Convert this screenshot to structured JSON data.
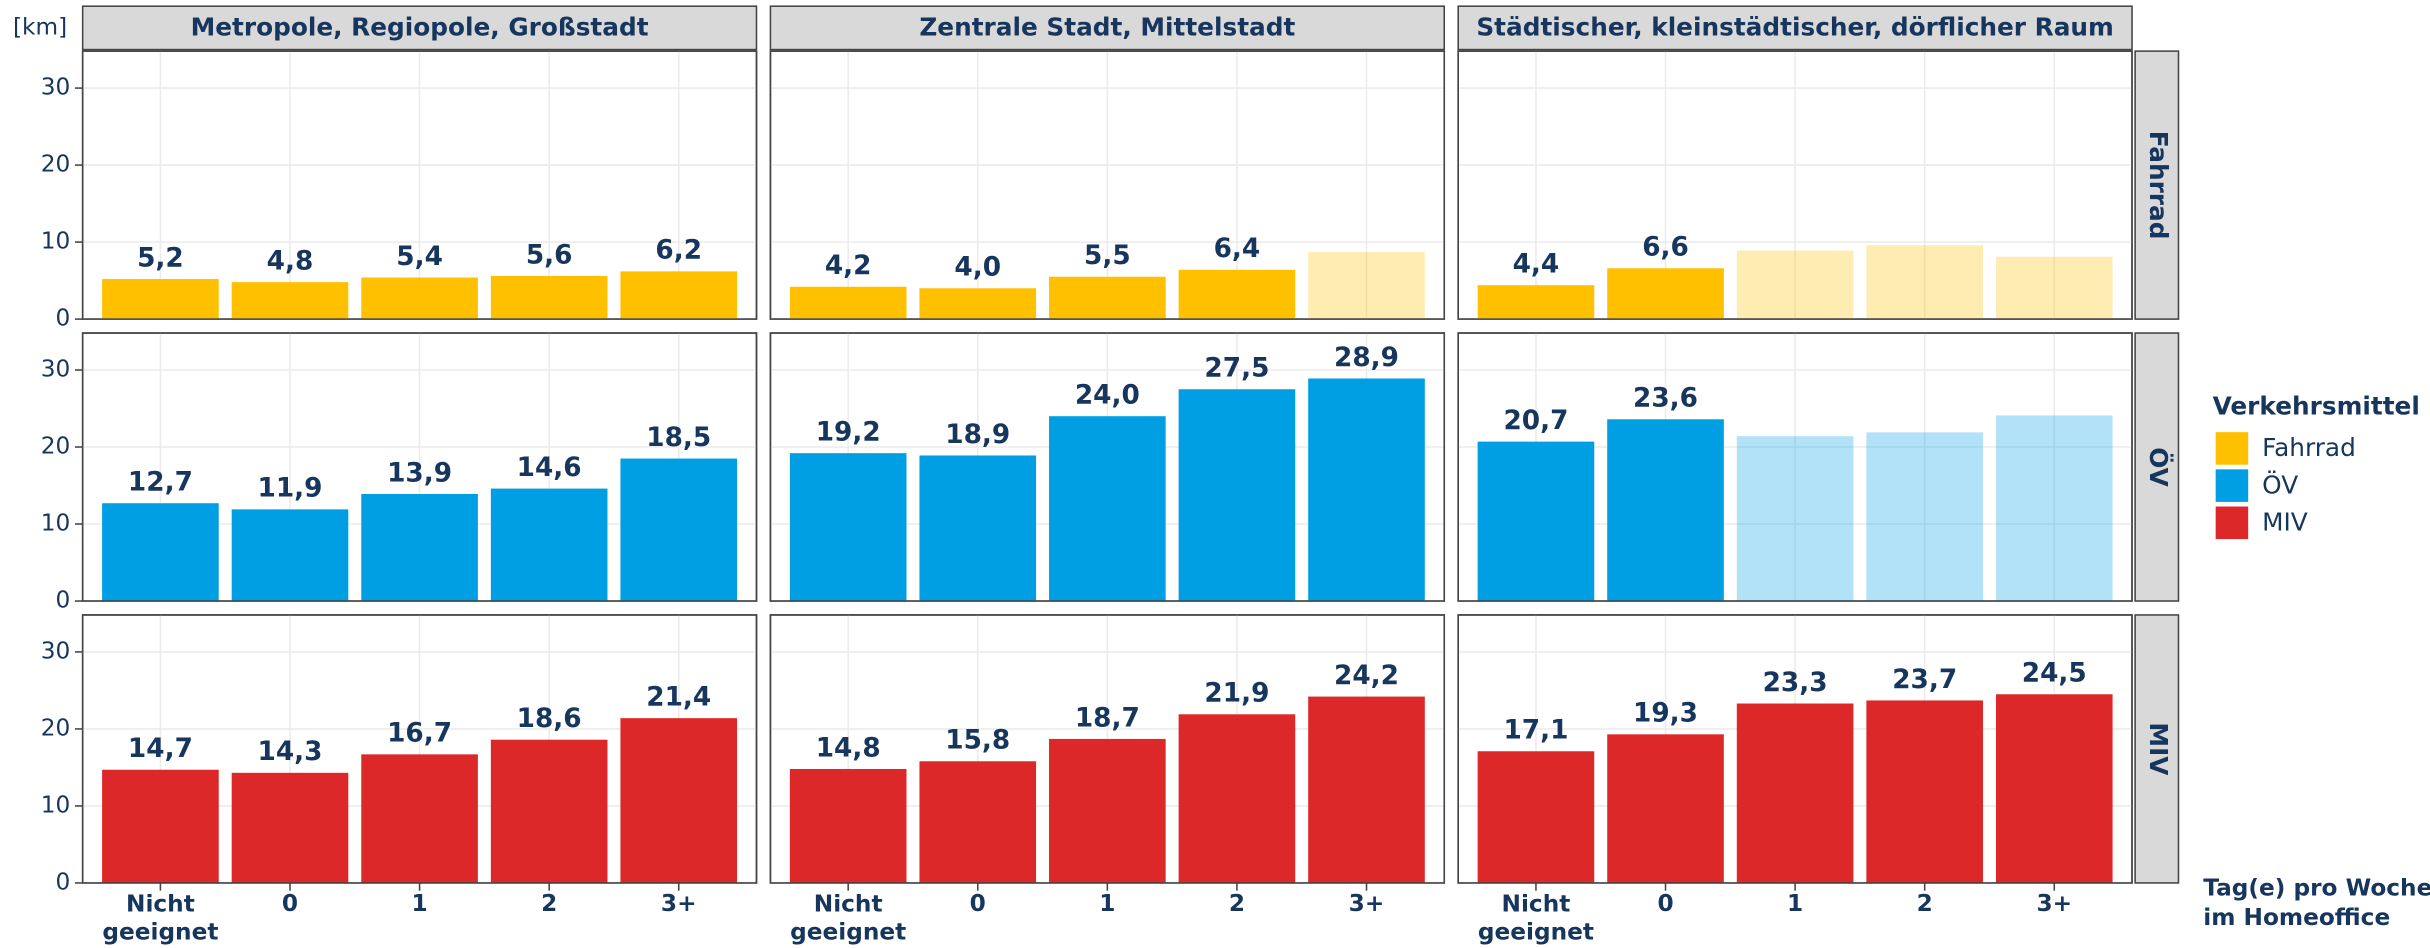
{
  "chart_data": {
    "type": "bar",
    "y_unit": "[km]",
    "columns": [
      "Metropole, Regiopole, Großstadt",
      "Zentrale Stadt, Mittelstadt",
      "Städtischer, kleinstädtischer, dörflicher Raum"
    ],
    "rows": [
      {
        "name": "Fahrrad",
        "color": "#ffc000"
      },
      {
        "name": "ÖV",
        "color": "#009fe3"
      },
      {
        "name": "MIV",
        "color": "#dc2828"
      }
    ],
    "categories": [
      "Nicht geeignet",
      "0",
      "1",
      "2",
      "3+"
    ],
    "xlabel": [
      "Tag(e) pro Woche",
      "im Homeoffice"
    ],
    "legend_title": "Verkehrsmittel",
    "ylim": [
      0,
      34.8
    ],
    "yticks": [
      0,
      10,
      20,
      30
    ],
    "grid": true,
    "panels": [
      [
        {
          "values": [
            5.2,
            4.8,
            5.4,
            5.6,
            6.2
          ],
          "value_labels": [
            "5,2",
            "4,8",
            "5,4",
            "5,6",
            "6,2"
          ]
        },
        {
          "values": [
            4.2,
            4.0,
            5.5,
            6.4,
            8.7
          ],
          "value_labels": [
            "4,2",
            "4,0",
            "5,5",
            "6,4",
            null
          ]
        },
        {
          "values": [
            4.4,
            6.6,
            8.9,
            9.6,
            8.1
          ],
          "value_labels": [
            "4,4",
            "6,6",
            null,
            null,
            null
          ]
        }
      ],
      [
        {
          "values": [
            12.7,
            11.9,
            13.9,
            14.6,
            18.5
          ],
          "value_labels": [
            "12,7",
            "11,9",
            "13,9",
            "14,6",
            "18,5"
          ]
        },
        {
          "values": [
            19.2,
            18.9,
            24.0,
            27.5,
            28.9
          ],
          "value_labels": [
            "19,2",
            "18,9",
            "24,0",
            "27,5",
            "28,9"
          ]
        },
        {
          "values": [
            20.7,
            23.6,
            21.4,
            21.9,
            24.1
          ],
          "value_labels": [
            "20,7",
            "23,6",
            null,
            null,
            null
          ]
        }
      ],
      [
        {
          "values": [
            14.7,
            14.3,
            16.7,
            18.6,
            21.4
          ],
          "value_labels": [
            "14,7",
            "14,3",
            "16,7",
            "18,6",
            "21,4"
          ]
        },
        {
          "values": [
            14.8,
            15.8,
            18.7,
            21.9,
            24.2
          ],
          "value_labels": [
            "14,8",
            "15,8",
            "18,7",
            "21,9",
            "24,2"
          ]
        },
        {
          "values": [
            17.1,
            19.3,
            23.3,
            23.7,
            24.5
          ],
          "value_labels": [
            "17,1",
            "19,3",
            "23,3",
            "23,7",
            "24,5"
          ]
        }
      ]
    ]
  }
}
